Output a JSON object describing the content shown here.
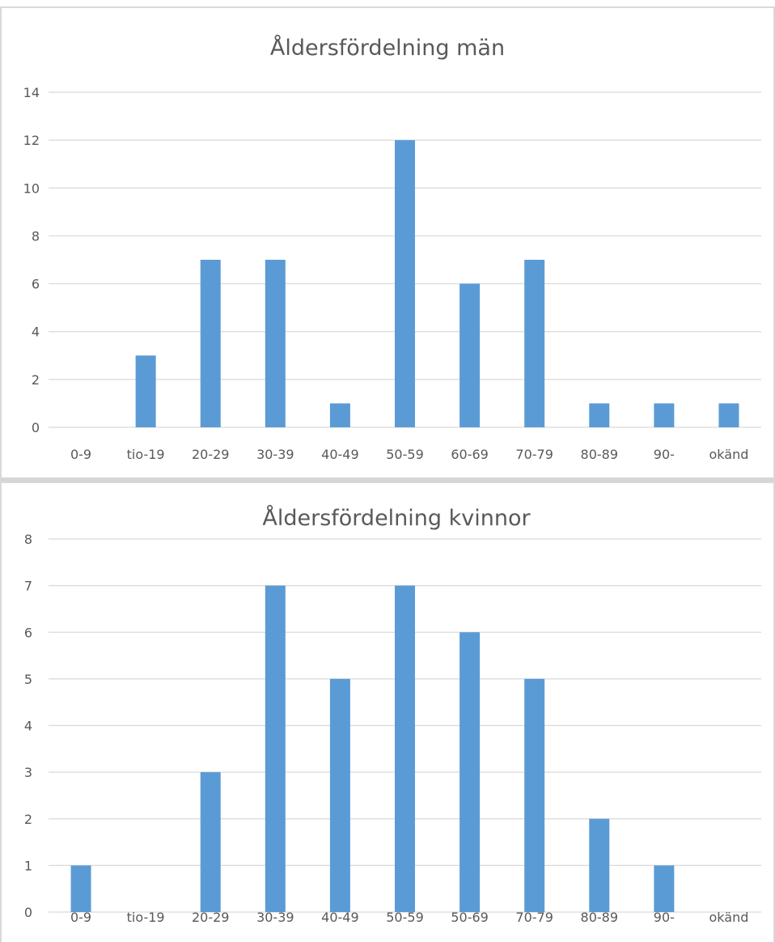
{
  "chart_data": [
    {
      "type": "bar",
      "title": "Åldersfördelning män",
      "xlabel": "",
      "ylabel": "",
      "categories": [
        "0-9",
        "tio-19",
        "20-29",
        "30-39",
        "40-49",
        "50-59",
        "60-69",
        "70-79",
        "80-89",
        "90-",
        "okänd"
      ],
      "values": [
        0,
        3,
        7,
        7,
        1,
        12,
        6,
        7,
        1,
        1,
        1
      ],
      "ylim": [
        0,
        14
      ],
      "yticks": [
        0,
        2,
        4,
        6,
        8,
        10,
        12,
        14
      ],
      "grid": true,
      "legend": "none",
      "bar_color": "#5b9bd5",
      "grid_color": "#d9d9d9",
      "text_color": "#595959"
    },
    {
      "type": "bar",
      "title": "Åldersfördelning kvinnor",
      "xlabel": "",
      "ylabel": "",
      "categories": [
        "0-9",
        "tio-19",
        "20-29",
        "30-39",
        "40-49",
        "50-59",
        "50-69",
        "70-79",
        "80-89",
        "90-",
        "okänd"
      ],
      "values": [
        1,
        0,
        3,
        7,
        5,
        7,
        6,
        5,
        2,
        1,
        0
      ],
      "ylim": [
        0,
        8
      ],
      "yticks": [
        0,
        1,
        2,
        3,
        4,
        5,
        6,
        7,
        8
      ],
      "grid": true,
      "legend": "none",
      "bar_color": "#5b9bd5",
      "grid_color": "#d9d9d9",
      "text_color": "#595959"
    }
  ]
}
